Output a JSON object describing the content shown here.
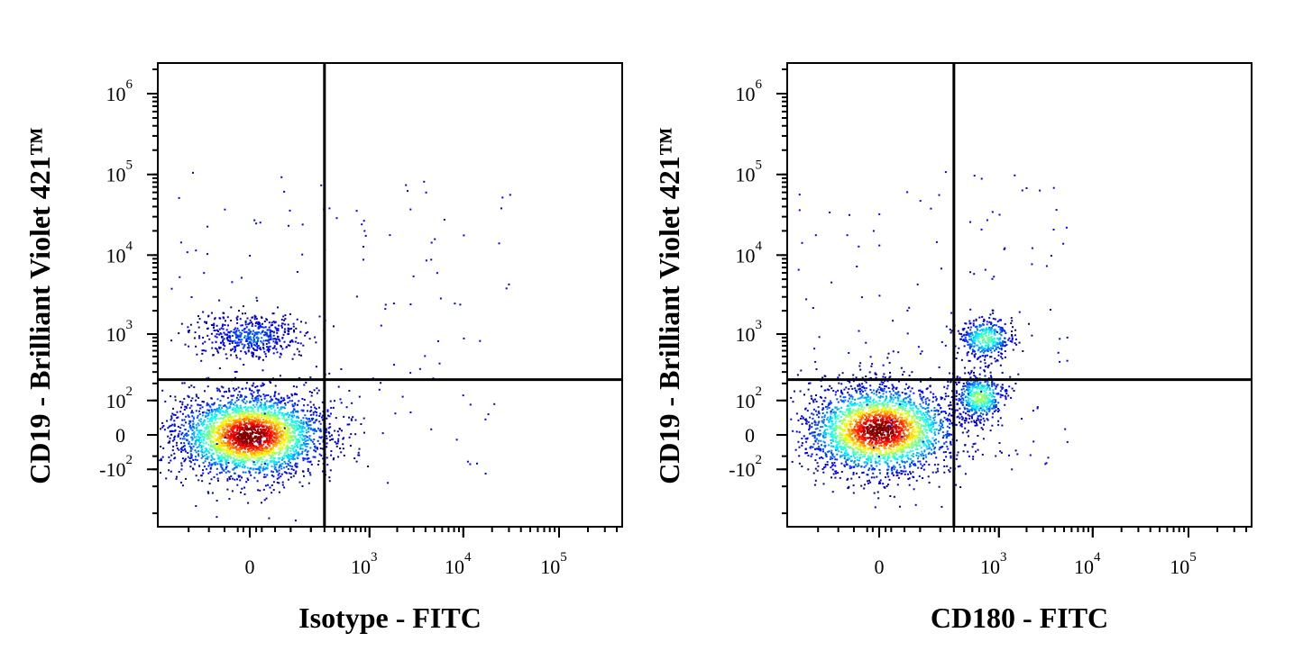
{
  "chart_data": [
    {
      "type": "scatter",
      "subtype": "flow-cytometry-density-dot-plot",
      "xlabel": "Isotype - FITC",
      "ylabel": "CD19 - Brilliant Violet 421™",
      "x_scale": "biexponential",
      "y_scale": "biexponential",
      "x_ticks": [
        {
          "value": 0,
          "base": "0",
          "exp": ""
        },
        {
          "value": 1000,
          "base": "10",
          "exp": "3"
        },
        {
          "value": 10000,
          "base": "10",
          "exp": "4"
        },
        {
          "value": 100000,
          "base": "10",
          "exp": "5"
        }
      ],
      "y_ticks": [
        {
          "value": -100,
          "base": "-10",
          "exp": "2"
        },
        {
          "value": 0,
          "base": "0",
          "exp": ""
        },
        {
          "value": 100,
          "base": "10",
          "exp": "2"
        },
        {
          "value": 1000,
          "base": "10",
          "exp": "3"
        },
        {
          "value": 10000,
          "base": "10",
          "exp": "4"
        },
        {
          "value": 100000,
          "base": "10",
          "exp": "5"
        },
        {
          "value": 1000000,
          "base": "10",
          "exp": "6"
        }
      ],
      "quadrant_gate": {
        "x": 300,
        "y": 230
      },
      "populations": [
        {
          "center": [
            0,
            0
          ],
          "events": 9000,
          "density": "high"
        },
        {
          "center": [
            0,
            950
          ],
          "events": 1500,
          "density": "low"
        }
      ],
      "grid": false,
      "legend": "none"
    },
    {
      "type": "scatter",
      "subtype": "flow-cytometry-density-dot-plot",
      "xlabel": "CD180 - FITC",
      "ylabel": "CD19 - Brilliant Violet 421™",
      "x_scale": "biexponential",
      "y_scale": "biexponential",
      "x_ticks": [
        {
          "value": 0,
          "base": "0",
          "exp": ""
        },
        {
          "value": 1000,
          "base": "10",
          "exp": "3"
        },
        {
          "value": 10000,
          "base": "10",
          "exp": "4"
        },
        {
          "value": 100000,
          "base": "10",
          "exp": "5"
        }
      ],
      "y_ticks": [
        {
          "value": -100,
          "base": "-10",
          "exp": "2"
        },
        {
          "value": 0,
          "base": "0",
          "exp": ""
        },
        {
          "value": 100,
          "base": "10",
          "exp": "2"
        },
        {
          "value": 1000,
          "base": "10",
          "exp": "3"
        },
        {
          "value": 10000,
          "base": "10",
          "exp": "4"
        },
        {
          "value": 100000,
          "base": "10",
          "exp": "5"
        },
        {
          "value": 1000000,
          "base": "10",
          "exp": "6"
        }
      ],
      "quadrant_gate": {
        "x": 300,
        "y": 230
      },
      "populations": [
        {
          "center": [
            0,
            10
          ],
          "events": 8000,
          "density": "high"
        },
        {
          "center": [
            700,
            900
          ],
          "events": 1200,
          "density": "medium"
        },
        {
          "center": [
            600,
            120
          ],
          "events": 1500,
          "density": "medium"
        }
      ],
      "grid": false,
      "legend": "none"
    }
  ]
}
